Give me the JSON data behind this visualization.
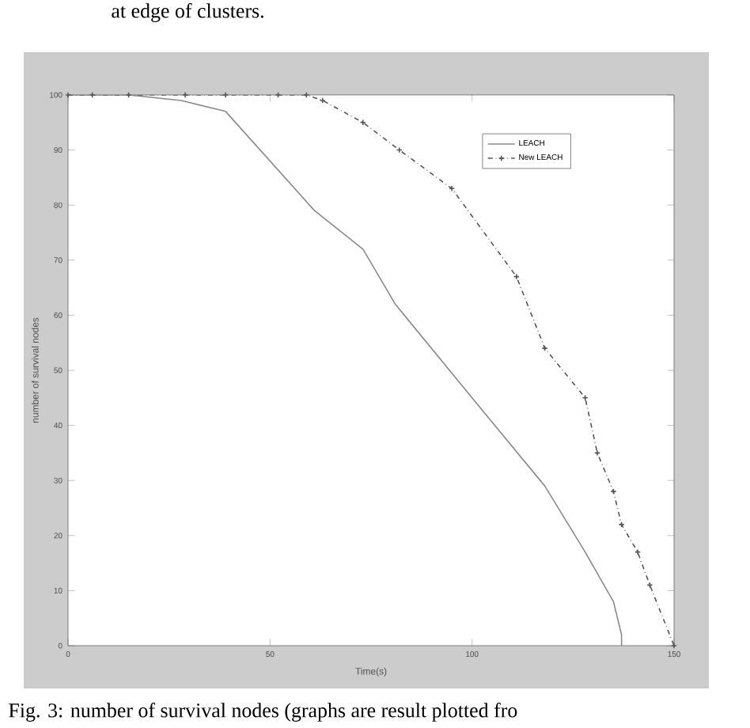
{
  "chart_data": {
    "type": "line",
    "xlabel": "Time(s)",
    "ylabel": "number of survival nodes",
    "xlim": [
      0,
      150
    ],
    "ylim": [
      0,
      100
    ],
    "xticks": [
      0,
      50,
      100,
      150
    ],
    "yticks": [
      0,
      10,
      20,
      30,
      40,
      50,
      60,
      70,
      80,
      90,
      100
    ],
    "legend": "top right",
    "grid": false,
    "annotations": [
      "at edge of clusters.",
      "Fig. 3: number of survival nodes (graphs are result plotted fro"
    ],
    "series": [
      {
        "name": "LEACH",
        "color": "#8a8a8a",
        "line_style": "solid",
        "marker": "none",
        "x": [
          0,
          15,
          28,
          39,
          50,
          61,
          73,
          81,
          100,
          118,
          128,
          135,
          137,
          137
        ],
        "values": [
          100,
          100,
          99,
          97,
          88,
          79,
          72,
          62,
          45,
          29,
          17,
          8,
          2,
          0
        ]
      },
      {
        "name": "New LEACH",
        "color": "#555555",
        "line_style": "dashed",
        "marker": "cross",
        "x": [
          0,
          6,
          15,
          29,
          39,
          52,
          59,
          63,
          73,
          82,
          95,
          111,
          118,
          128,
          131,
          135,
          137,
          141,
          144,
          150
        ],
        "values": [
          100,
          100,
          100,
          100,
          100,
          100,
          100,
          99,
          95,
          90,
          83,
          67,
          54,
          45,
          35,
          28,
          22,
          17,
          11,
          0
        ]
      }
    ]
  }
}
